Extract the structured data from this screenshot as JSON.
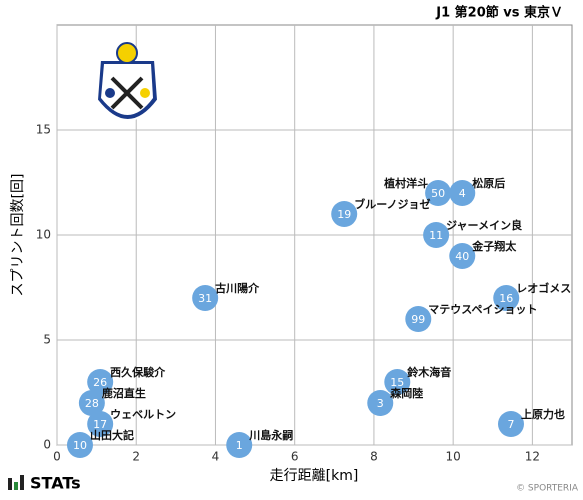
{
  "chart_data": {
    "type": "scatter",
    "title": "J1 第20節 vs 東京Ｖ",
    "x_label": "走行距離[km]",
    "y_label": "スプリント回数[回]",
    "color": "#6aa6de",
    "xlim": [
      0,
      13
    ],
    "xticks": [
      0,
      2,
      4,
      6,
      8,
      10,
      12
    ],
    "ylim": [
      0,
      20
    ],
    "yticks": [
      0,
      5,
      10,
      15
    ],
    "grid": true,
    "x": [
      9.62,
      10.23,
      7.25,
      9.57,
      10.23,
      3.74,
      11.34,
      9.12,
      1.09,
      8.59,
      0.88,
      8.16,
      1.09,
      11.46,
      0.58,
      4.6
    ],
    "values": [
      12,
      12,
      11,
      10,
      9,
      7,
      7,
      6,
      3,
      3,
      2,
      2,
      1,
      1,
      0,
      0
    ],
    "numbers": [
      50,
      4,
      19,
      11,
      40,
      31,
      16,
      99,
      26,
      15,
      28,
      3,
      17,
      7,
      10,
      1
    ],
    "names": [
      "植村洋斗",
      "松原后",
      "ブルーノジョゼ",
      "ジャーメイン良",
      "金子翔太",
      "古川陽介",
      "レオゴメス",
      "マテウスペイショット",
      "西久保駿介",
      "鈴木海音",
      "鹿沼直生",
      "森岡陸",
      "ウェベルトン",
      "上原力也",
      "山田大記",
      "川島永嗣"
    ],
    "brand": "STATs",
    "credit": "© SPORTERIA"
  }
}
